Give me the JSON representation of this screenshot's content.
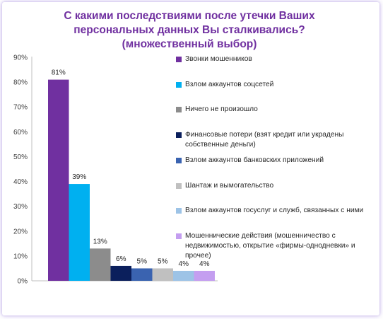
{
  "title": "С какими последствиями после утечки Ваших персональных данных Вы сталкивались? (множественный выбор)",
  "chart_data": {
    "type": "bar",
    "title": "С какими последствиями после утечки Ваших персональных данных Вы сталкивались? (множественный выбор)",
    "categories": [
      "Звонки мошенников",
      "Взлом аккаунтов соцсетей",
      "Ничего не произошло",
      "Финансовые потери (взят кредит или украдены собственные деньги)",
      "Взлом аккаунтов банковских приложений",
      "Шантаж и вымогательство",
      "Взлом аккаунтов госуслуг и служб, связанных с ними",
      "Мошеннические действия (мошенничество с недвижимостью, открытие «фирмы-однодневки» и прочее)"
    ],
    "values": [
      81,
      39,
      13,
      6,
      5,
      5,
      4,
      4
    ],
    "value_labels": [
      "81%",
      "39%",
      "13%",
      "6%",
      "5%",
      "5%",
      "4%",
      "4%"
    ],
    "colors": [
      "#7030a0",
      "#00b0f0",
      "#8c8c8c",
      "#0b1f5c",
      "#3a63b0",
      "#c0c0c0",
      "#9dc3e6",
      "#c49ef0"
    ],
    "ylim": [
      0,
      90
    ],
    "yticks": [
      "0%",
      "10%",
      "20%",
      "30%",
      "40%",
      "50%",
      "60%",
      "70%",
      "80%",
      "90%"
    ],
    "legend_position": "right",
    "grid": false,
    "xlabel": "",
    "ylabel": ""
  }
}
